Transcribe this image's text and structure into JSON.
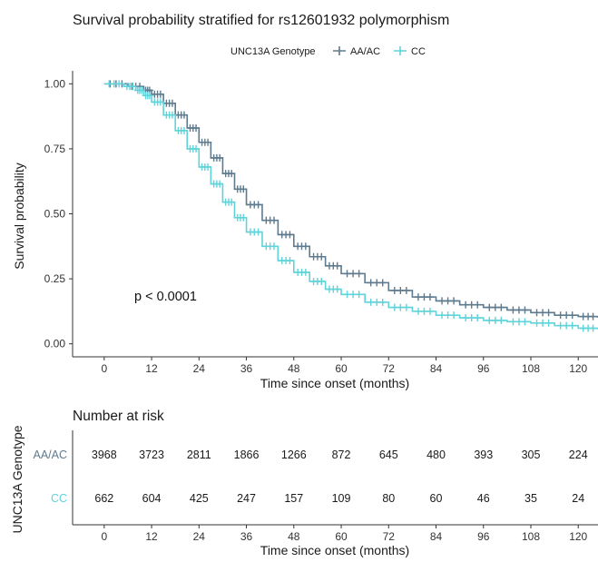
{
  "chart_data": {
    "type": "line",
    "title": "Survival probability stratified for rs12601932 polymorphism",
    "xlabel": "Time since onset (months)",
    "ylabel": "Survival probability",
    "xlim": [
      -8,
      125
    ],
    "ylim": [
      -0.05,
      1.05
    ],
    "x_ticks": [
      0,
      12,
      24,
      36,
      48,
      60,
      72,
      84,
      96,
      108,
      120
    ],
    "x_tick_labels": [
      "0",
      "12",
      "24",
      "36",
      "48",
      "60",
      "72",
      "84",
      "96",
      "108",
      "120"
    ],
    "y_ticks": [
      0,
      0.25,
      0.5,
      0.75,
      1.0
    ],
    "y_tick_labels": [
      "0.00",
      "0.25",
      "0.50",
      "0.75",
      "1.00"
    ],
    "grid": false,
    "legend": {
      "title": "UNC13A Genotype",
      "position": "top"
    },
    "annotation": "p < 0.0001",
    "series": [
      {
        "name": "AA/AC",
        "color": "#5e7a8e",
        "points": [
          [
            0,
            1.0
          ],
          [
            6,
            0.99
          ],
          [
            10,
            0.975
          ],
          [
            12,
            0.96
          ],
          [
            15,
            0.925
          ],
          [
            18,
            0.88
          ],
          [
            21,
            0.83
          ],
          [
            24,
            0.775
          ],
          [
            27,
            0.715
          ],
          [
            30,
            0.655
          ],
          [
            33,
            0.595
          ],
          [
            36,
            0.535
          ],
          [
            40,
            0.475
          ],
          [
            44,
            0.42
          ],
          [
            48,
            0.375
          ],
          [
            52,
            0.335
          ],
          [
            56,
            0.3
          ],
          [
            60,
            0.27
          ],
          [
            66,
            0.235
          ],
          [
            72,
            0.205
          ],
          [
            78,
            0.18
          ],
          [
            84,
            0.165
          ],
          [
            90,
            0.15
          ],
          [
            96,
            0.14
          ],
          [
            102,
            0.13
          ],
          [
            108,
            0.12
          ],
          [
            114,
            0.11
          ],
          [
            120,
            0.105
          ],
          [
            125,
            0.1
          ]
        ]
      },
      {
        "name": "CC",
        "color": "#5fd3d9",
        "points": [
          [
            0,
            1.0
          ],
          [
            5,
            0.99
          ],
          [
            8,
            0.975
          ],
          [
            10,
            0.955
          ],
          [
            12,
            0.93
          ],
          [
            15,
            0.88
          ],
          [
            18,
            0.82
          ],
          [
            21,
            0.75
          ],
          [
            24,
            0.68
          ],
          [
            27,
            0.615
          ],
          [
            30,
            0.545
          ],
          [
            33,
            0.485
          ],
          [
            36,
            0.43
          ],
          [
            40,
            0.375
          ],
          [
            44,
            0.32
          ],
          [
            48,
            0.275
          ],
          [
            52,
            0.24
          ],
          [
            56,
            0.21
          ],
          [
            60,
            0.19
          ],
          [
            66,
            0.16
          ],
          [
            72,
            0.14
          ],
          [
            78,
            0.125
          ],
          [
            84,
            0.11
          ],
          [
            90,
            0.1
          ],
          [
            96,
            0.09
          ],
          [
            102,
            0.085
          ],
          [
            108,
            0.08
          ],
          [
            114,
            0.07
          ],
          [
            120,
            0.06
          ],
          [
            125,
            0.055
          ]
        ]
      }
    ],
    "risk_table": {
      "title": "Number at risk",
      "ylabel": "UNC13A Genotype",
      "xlabel": "Time since onset (months)",
      "times": [
        0,
        12,
        24,
        36,
        48,
        60,
        72,
        84,
        96,
        108,
        120
      ],
      "time_labels": [
        "0",
        "12",
        "24",
        "36",
        "48",
        "60",
        "72",
        "84",
        "96",
        "108",
        "120"
      ],
      "rows": [
        {
          "name": "AA/AC",
          "color": "#5e7a8e",
          "counts": [
            "3968",
            "3723",
            "2811",
            "1866",
            "1266",
            "872",
            "645",
            "480",
            "393",
            "305",
            "224"
          ]
        },
        {
          "name": "CC",
          "color": "#5fd3d9",
          "counts": [
            "662",
            "604",
            "425",
            "247",
            "157",
            "109",
            "80",
            "60",
            "46",
            "35",
            "24"
          ]
        }
      ]
    }
  }
}
